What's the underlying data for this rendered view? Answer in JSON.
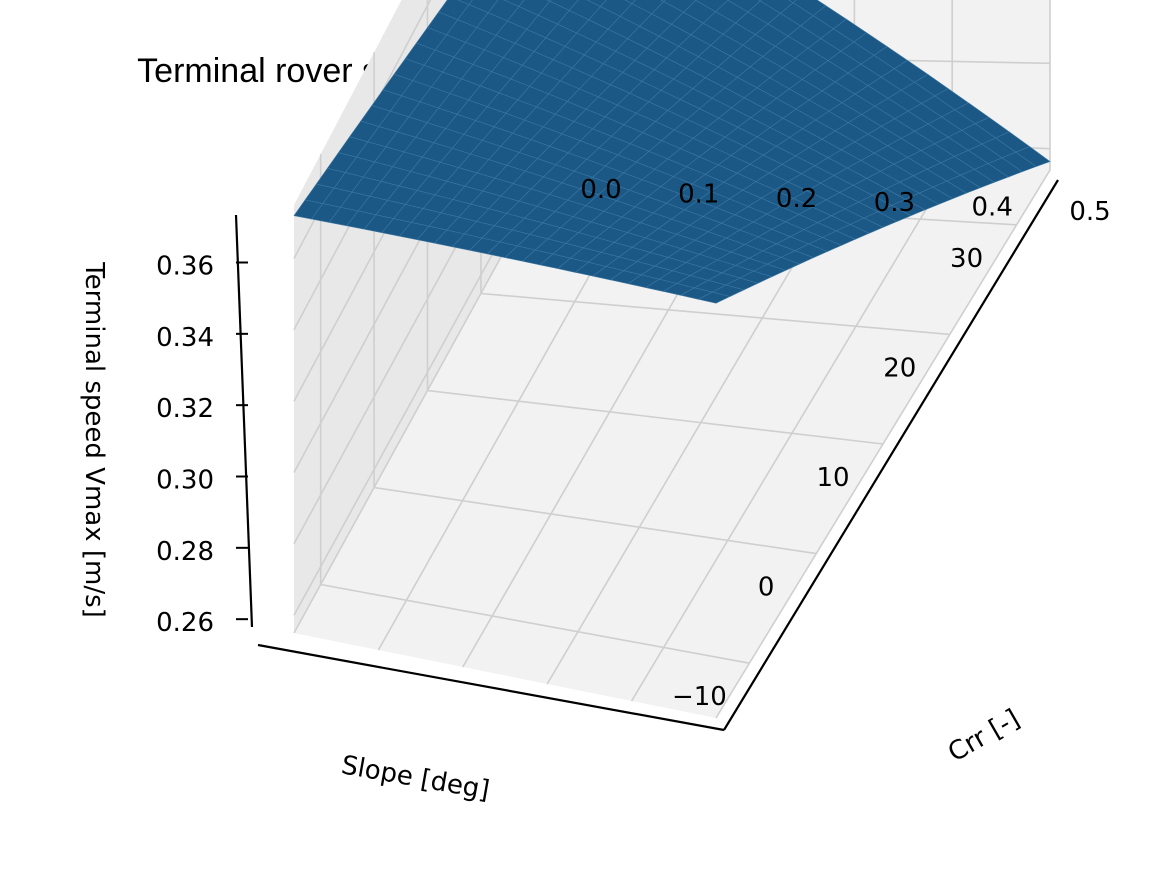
{
  "chart_data": {
    "type": "surface3d",
    "title": "Terminal rover speed vs. rolling resistance and terrain slope",
    "xlabel": "Slope [deg]",
    "ylabel": "Crr [-]",
    "zlabel": "Terminal speed Vmax [m/s]",
    "xlim": [
      -15,
      35
    ],
    "ylim": [
      0.0,
      0.5
    ],
    "zlim": [
      0.255,
      0.375
    ],
    "xticks": [
      "−10",
      "0",
      "10",
      "20",
      "30"
    ],
    "yticks": [
      "0.0",
      "0.1",
      "0.2",
      "0.3",
      "0.4",
      "0.5"
    ],
    "zticks": [
      "0.26",
      "0.28",
      "0.30",
      "0.32",
      "0.34",
      "0.36"
    ],
    "grid": true,
    "surface_color": "#1b5886",
    "edge_color": "#3c77a2",
    "corners": [
      {
        "slope": -15,
        "crr": 0.0,
        "vmax": 0.372
      },
      {
        "slope": -15,
        "crr": 0.5,
        "vmax": 0.357
      },
      {
        "slope": 35,
        "crr": 0.0,
        "vmax": 0.336
      },
      {
        "slope": 35,
        "crr": 0.5,
        "vmax": 0.257
      }
    ]
  }
}
